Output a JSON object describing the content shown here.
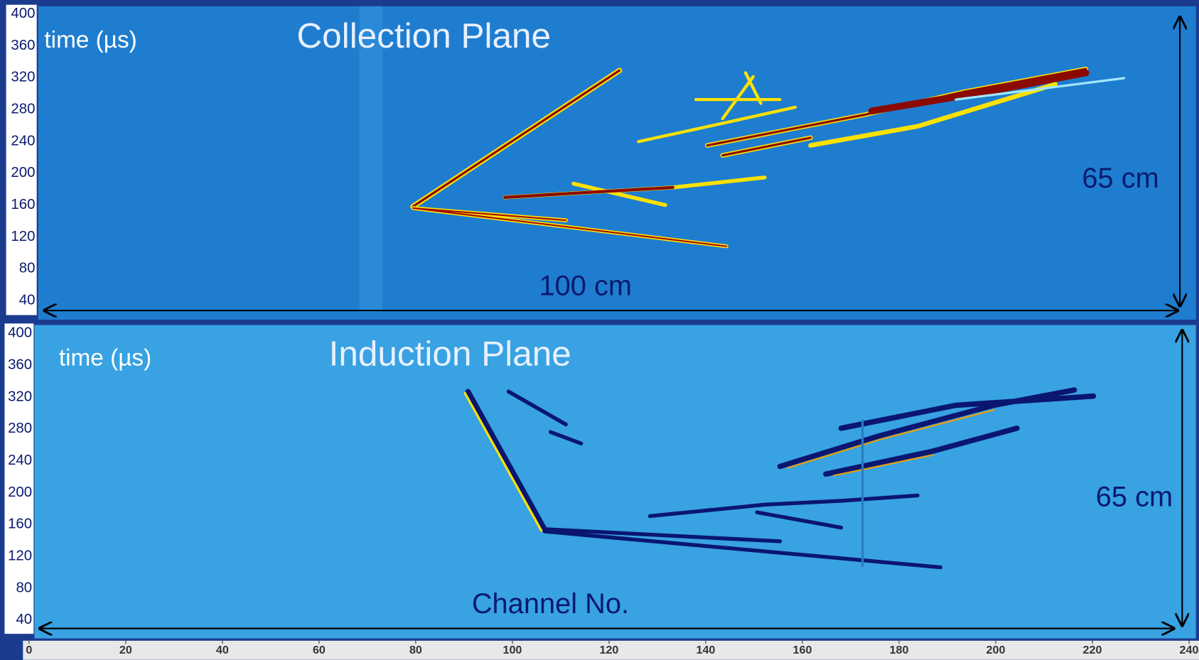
{
  "panels": [
    {
      "title": "Collection Plane",
      "axis_label": "time (µs)",
      "yticks": [
        400,
        360,
        320,
        280,
        240,
        200,
        160,
        120,
        80,
        40
      ],
      "width_label": "100 cm",
      "height_label": "65 cm"
    },
    {
      "title": "Induction Plane",
      "axis_label": "time (µs)",
      "yticks": [
        400,
        360,
        320,
        280,
        240,
        200,
        160,
        120,
        80,
        40
      ],
      "width_label": "Channel No.",
      "height_label": "65 cm"
    }
  ],
  "bottom_axis": {
    "ticks": [
      0,
      20,
      40,
      60,
      80,
      100,
      120,
      140,
      160,
      180,
      200,
      220,
      240
    ]
  }
}
